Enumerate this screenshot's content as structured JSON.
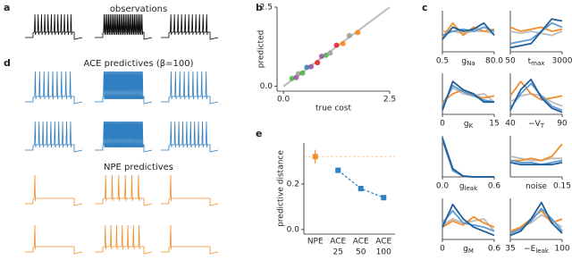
{
  "chart_data": [
    {
      "type": "traces",
      "label": "a",
      "title": "observations",
      "color": "#000000"
    },
    {
      "type": "traces",
      "label": "d",
      "title": "ACE predictives (β=100)",
      "color": "#2f7fc1"
    },
    {
      "type": "traces",
      "title": "NPE predictives",
      "color": "#f28e2b"
    },
    {
      "type": "scatter",
      "label": "b",
      "xlabel": "true cost",
      "ylabel": "predicted",
      "xlim": [
        -0.15,
        2.5
      ],
      "ylim": [
        -0.15,
        2.5
      ],
      "xticks": [
        {
          "value": 0,
          "label": "0.0"
        },
        2.5
      ],
      "yticks": [
        {
          "value": 0,
          "label": "0.0"
        },
        2.5
      ],
      "identity_line": {
        "x": [
          0,
          2.5
        ],
        "y": [
          0,
          2.5
        ],
        "color": "#bbbbbb"
      },
      "x": [
        0.2,
        0.3,
        0.35,
        0.45,
        0.55,
        0.65,
        0.8,
        0.9,
        1.0,
        1.1,
        1.25,
        1.4,
        1.55,
        1.75
      ],
      "y": [
        0.25,
        0.28,
        0.4,
        0.42,
        0.6,
        0.62,
        0.75,
        0.95,
        0.98,
        1.05,
        1.3,
        1.35,
        1.6,
        1.7
      ],
      "colors": [
        "#4daf4a",
        "#984ea3",
        "#999999",
        "#4daf4a",
        "#377eb8",
        "#984ea3",
        "#e41a1c",
        "#984ea3",
        "#4daf4a",
        "#999999",
        "#e41a1c",
        "#ff7f00",
        "#999999",
        "#ff7f00"
      ]
    },
    {
      "type": "errorbar",
      "label": "e",
      "ylabel": "predictive distance",
      "categories": [
        [
          "NPE"
        ],
        [
          "ACE",
          "25"
        ],
        [
          "ACE",
          "50"
        ],
        [
          "ACE",
          "100"
        ]
      ],
      "values": [
        0.32,
        0.26,
        0.18,
        0.14
      ],
      "errors": [
        0.03,
        0.01,
        0.01,
        0.01
      ],
      "colors": [
        "#f28e2b",
        "#2f7fc1",
        "#2f7fc1",
        "#2f7fc1"
      ],
      "ylim": [
        -0.02,
        0.38
      ],
      "yticks": [
        {
          "value": 0,
          "label": "0.0"
        },
        0.2
      ]
    },
    {
      "type": "density",
      "label": "c",
      "xlabel": "g",
      "xlabel_sub": "Na",
      "xlim": [
        0.5,
        80.0
      ],
      "xticks": [
        0.5,
        {
          "value": 80,
          "label": "80.0"
        }
      ],
      "x": [
        0.5,
        16.4,
        32.3,
        48.2,
        64.1,
        80.0
      ],
      "series": [
        {
          "color": "#bbbbbb",
          "values": [
            0.5,
            0.5,
            0.45,
            0.5,
            0.5,
            0.45
          ]
        },
        {
          "color": "#f28e2b",
          "values": [
            0.35,
            0.7,
            0.4,
            0.6,
            0.5,
            0.55
          ]
        },
        {
          "color": "#5b9bd5",
          "values": [
            0.4,
            0.5,
            0.55,
            0.5,
            0.6,
            0.5
          ]
        },
        {
          "color": "#1f5d99",
          "values": [
            0.3,
            0.6,
            0.5,
            0.55,
            0.7,
            0.4
          ]
        }
      ]
    },
    {
      "type": "density",
      "xlabel": "t",
      "xlabel_sub": "max",
      "xlim": [
        50,
        3000
      ],
      "xticks": [
        50,
        3000
      ],
      "x": [
        50,
        640,
        1230,
        1820,
        2410,
        3000
      ],
      "series": [
        {
          "color": "#bbbbbb",
          "values": [
            0.5,
            0.45,
            0.5,
            0.45,
            0.4,
            0.5
          ]
        },
        {
          "color": "#f28e2b",
          "values": [
            0.6,
            0.5,
            0.55,
            0.6,
            0.5,
            0.55
          ]
        },
        {
          "color": "#5b9bd5",
          "values": [
            0.2,
            0.25,
            0.3,
            0.5,
            0.7,
            0.6
          ]
        },
        {
          "color": "#1f5d99",
          "values": [
            0.1,
            0.15,
            0.2,
            0.5,
            0.8,
            0.75
          ]
        }
      ]
    },
    {
      "type": "density",
      "xlabel": "g",
      "xlabel_sub": "K",
      "xlim": [
        0,
        15
      ],
      "xticks": [
        0,
        15
      ],
      "x": [
        0,
        3,
        6,
        9,
        12,
        15
      ],
      "series": [
        {
          "color": "#bbbbbb",
          "values": [
            0.25,
            0.65,
            0.5,
            0.45,
            0.5,
            0.3
          ]
        },
        {
          "color": "#f28e2b",
          "values": [
            0.3,
            0.5,
            0.6,
            0.45,
            0.4,
            0.45
          ]
        },
        {
          "color": "#5b9bd5",
          "values": [
            0.2,
            0.7,
            0.55,
            0.45,
            0.35,
            0.3
          ]
        },
        {
          "color": "#1f5d99",
          "values": [
            0.1,
            0.8,
            0.6,
            0.5,
            0.3,
            0.3
          ]
        }
      ]
    },
    {
      "type": "density",
      "xlabel": "−V",
      "xlabel_sub": "T",
      "xlim": [
        40,
        90
      ],
      "xticks": [
        40,
        90
      ],
      "x": [
        40,
        50,
        60,
        70,
        80,
        90
      ],
      "series": [
        {
          "color": "#bbbbbb",
          "values": [
            0.3,
            0.45,
            0.5,
            0.45,
            0.3,
            0.2
          ]
        },
        {
          "color": "#f28e2b",
          "values": [
            0.45,
            0.8,
            0.5,
            0.35,
            0.4,
            0.45
          ]
        },
        {
          "color": "#5b9bd5",
          "values": [
            0.15,
            0.5,
            0.75,
            0.45,
            0.2,
            0.1
          ]
        },
        {
          "color": "#1f5d99",
          "values": [
            0.1,
            0.6,
            0.85,
            0.4,
            0.15,
            0.05
          ]
        }
      ]
    },
    {
      "type": "density",
      "xlabel": "g",
      "xlabel_sub": "leak",
      "xlim": [
        0,
        0.6
      ],
      "xticks": [
        {
          "value": 0,
          "label": "0.0"
        },
        0.6
      ],
      "x": [
        0,
        0.12,
        0.24,
        0.36,
        0.48,
        0.6
      ],
      "series": [
        {
          "color": "#bbbbbb",
          "values": [
            0.9,
            0.2,
            0.02,
            0,
            0,
            0
          ]
        },
        {
          "color": "#f28e2b",
          "values": [
            0.92,
            0.18,
            0.01,
            0,
            0,
            0
          ]
        },
        {
          "color": "#5b9bd5",
          "values": [
            0.9,
            0.15,
            0.02,
            0,
            0,
            0
          ]
        },
        {
          "color": "#1f5d99",
          "values": [
            0.95,
            0.2,
            0.02,
            0,
            0,
            0
          ]
        }
      ]
    },
    {
      "type": "density",
      "xlabel": "noise",
      "xlim": [
        0,
        0.15
      ],
      "xticks": [
        0.15
      ],
      "x": [
        0,
        0.03,
        0.06,
        0.09,
        0.12,
        0.15
      ],
      "series": [
        {
          "color": "#bbbbbb",
          "values": [
            0.5,
            0.45,
            0.4,
            0.4,
            0.45,
            0.45
          ]
        },
        {
          "color": "#f28e2b",
          "values": [
            0.4,
            0.4,
            0.45,
            0.4,
            0.5,
            0.8
          ]
        },
        {
          "color": "#5b9bd5",
          "values": [
            0.4,
            0.35,
            0.35,
            0.3,
            0.35,
            0.4
          ]
        },
        {
          "color": "#1f5d99",
          "values": [
            0.35,
            0.3,
            0.3,
            0.3,
            0.3,
            0.35
          ]
        }
      ]
    },
    {
      "type": "density",
      "xlabel": "g",
      "xlabel_sub": "M",
      "xlim": [
        0,
        0.6
      ],
      "xticks": [
        0,
        0.6
      ],
      "x": [
        0,
        0.12,
        0.24,
        0.36,
        0.48,
        0.6
      ],
      "series": [
        {
          "color": "#bbbbbb",
          "values": [
            0.35,
            0.5,
            0.4,
            0.45,
            0.5,
            0.2
          ]
        },
        {
          "color": "#f28e2b",
          "values": [
            0.3,
            0.45,
            0.35,
            0.55,
            0.4,
            0.3
          ]
        },
        {
          "color": "#5b9bd5",
          "values": [
            0.4,
            0.7,
            0.4,
            0.35,
            0.3,
            0.2
          ]
        },
        {
          "color": "#1f5d99",
          "values": [
            0.3,
            0.85,
            0.5,
            0.3,
            0.2,
            0.1
          ]
        }
      ]
    },
    {
      "type": "density",
      "xlabel": "−E",
      "xlabel_sub": "leak",
      "xlim": [
        35,
        100
      ],
      "xticks": [
        35,
        100
      ],
      "x": [
        35,
        48,
        61,
        74,
        87,
        100
      ],
      "series": [
        {
          "color": "#bbbbbb",
          "values": [
            0.15,
            0.3,
            0.4,
            0.6,
            0.45,
            0.3
          ]
        },
        {
          "color": "#f28e2b",
          "values": [
            0.2,
            0.3,
            0.5,
            0.7,
            0.4,
            0.5
          ]
        },
        {
          "color": "#5b9bd5",
          "values": [
            0.15,
            0.25,
            0.45,
            0.75,
            0.5,
            0.2
          ]
        },
        {
          "color": "#1f5d99",
          "values": [
            0.1,
            0.2,
            0.5,
            0.9,
            0.4,
            0.15
          ]
        }
      ]
    }
  ]
}
